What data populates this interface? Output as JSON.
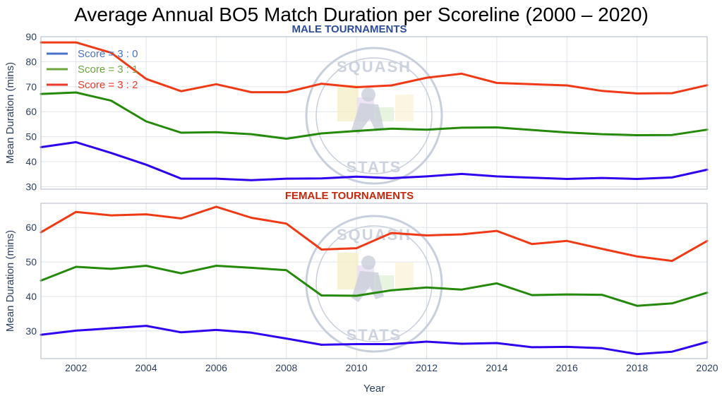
{
  "colors": {
    "score30": "#2f00f0",
    "score31": "#258a0a",
    "score32": "#f03a15",
    "male_title": "#2c4c99",
    "female_title": "#c5280c",
    "legend30": "#4a72c9",
    "legend31": "#6ca63f",
    "legend32": "#ea3a2a"
  },
  "watermark": {
    "line1": "SQUASH",
    "line2": "STATS"
  },
  "chart_data": {
    "type": "line",
    "title": "Average Annual BO5 Match Duration per Scoreline (2000 – 2020)",
    "xlabel": "Year",
    "xlim": [
      2001,
      2020
    ],
    "x_ticks": [
      "2002",
      "2004",
      "2006",
      "2008",
      "2010",
      "2012",
      "2014",
      "2016",
      "2018",
      "2020"
    ],
    "x": [
      2001,
      2002,
      2003,
      2004,
      2005,
      2006,
      2007,
      2008,
      2009,
      2010,
      2011,
      2012,
      2013,
      2014,
      2015,
      2016,
      2017,
      2018,
      2019,
      2020
    ],
    "legend": [
      "Score = 3 : 0",
      "Score = 3 : 1",
      "Score = 3 : 2"
    ],
    "legend_position": "top-left",
    "grid": true,
    "panels": [
      {
        "subtitle": "MALE TOURNAMENTS",
        "ylabel": "Mean Duration (mins)",
        "ylim": [
          29,
          90
        ],
        "y_ticks": [
          "30",
          "40",
          "50",
          "60",
          "70",
          "80",
          "90"
        ],
        "series": [
          {
            "name": "Score = 3 : 0",
            "values": [
              45.8,
              47.8,
              43.5,
              38.8,
              33.2,
              33.2,
              32.6,
              33.2,
              33.3,
              34.0,
              33.4,
              34.1,
              35.1,
              34.1,
              33.6,
              33.1,
              33.5,
              33.1,
              33.7,
              36.8
            ]
          },
          {
            "name": "Score = 3 : 1",
            "values": [
              67.1,
              67.7,
              64.4,
              56.1,
              51.6,
              51.8,
              51.0,
              49.2,
              51.3,
              52.3,
              53.2,
              52.8,
              53.6,
              53.7,
              52.7,
              51.7,
              51.0,
              50.6,
              50.7,
              52.8
            ]
          },
          {
            "name": "Score = 3 : 2",
            "values": [
              87.7,
              87.7,
              83.6,
              73.1,
              68.2,
              71.0,
              67.8,
              67.8,
              71.2,
              69.8,
              70.5,
              73.6,
              75.2,
              71.5,
              71.0,
              70.5,
              68.3,
              67.3,
              67.4,
              70.6
            ]
          }
        ]
      },
      {
        "subtitle": "FEMALE TOURNAMENTS",
        "ylabel": "Mean Duration (mins)",
        "ylim": [
          22,
          67
        ],
        "y_ticks": [
          "30",
          "40",
          "50",
          "60"
        ],
        "series": [
          {
            "name": "Score = 3 : 0",
            "values": [
              28.9,
              30.1,
              30.8,
              31.5,
              29.6,
              30.3,
              29.5,
              27.8,
              26.0,
              26.2,
              26.2,
              26.9,
              26.3,
              26.5,
              25.3,
              25.4,
              25.0,
              23.3,
              24.0,
              26.8
            ]
          },
          {
            "name": "Score = 3 : 1",
            "values": [
              44.6,
              48.6,
              48.0,
              48.9,
              46.7,
              48.9,
              48.3,
              47.6,
              40.3,
              40.2,
              41.8,
              42.6,
              42.0,
              43.8,
              40.4,
              40.6,
              40.5,
              37.3,
              38.0,
              41.1
            ]
          },
          {
            "name": "Score = 3 : 2",
            "values": [
              58.6,
              64.5,
              63.5,
              63.8,
              62.6,
              66.0,
              62.8,
              61.1,
              53.6,
              54.0,
              58.4,
              57.7,
              58.0,
              59.0,
              55.2,
              56.1,
              53.8,
              51.6,
              50.3,
              56.1
            ]
          }
        ]
      }
    ]
  }
}
